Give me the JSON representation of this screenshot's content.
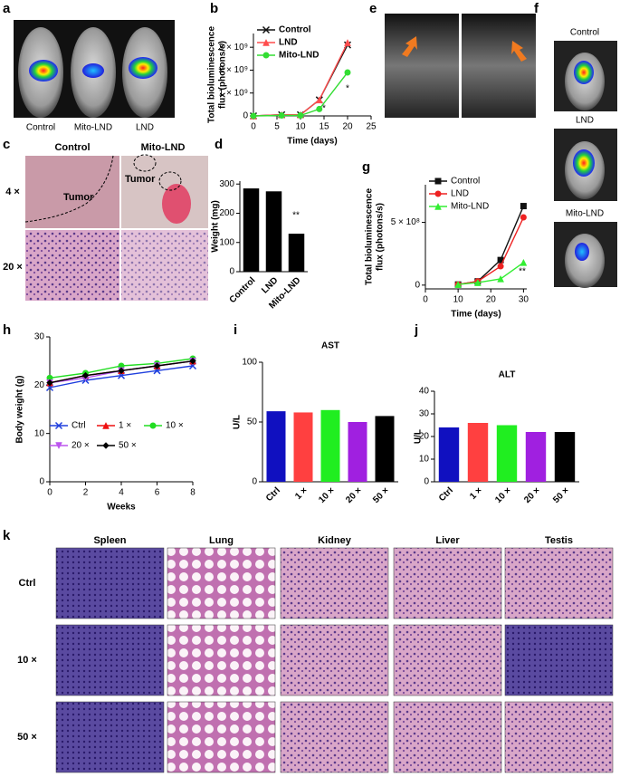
{
  "panel_labels": [
    "a",
    "b",
    "c",
    "d",
    "e",
    "f",
    "g",
    "h",
    "i",
    "j",
    "k"
  ],
  "images": {
    "a": {
      "labels": [
        "Control",
        "Mito-LND",
        "LND"
      ]
    },
    "c": {
      "columns": [
        "Control",
        "Mito-LND"
      ],
      "rows": [
        "4 ×",
        "20 ×"
      ],
      "annotations": [
        "Tumor",
        "Tumor"
      ]
    },
    "f": {
      "labels": [
        "Control",
        "LND",
        "Mito-LND"
      ]
    },
    "k": {
      "columns": [
        "Spleen",
        "Lung",
        "Kidney",
        "Liver",
        "Testis"
      ],
      "rows": [
        "Ctrl",
        "10 ×",
        "50 ×"
      ]
    }
  },
  "chart_data": [
    {
      "type": "line",
      "xlabel": "Time (days)",
      "ylabel": [
        "Total bioluminescence",
        "flux (photons/s)"
      ],
      "x": [
        0,
        6,
        10,
        14,
        20
      ],
      "xlim": [
        0,
        25
      ],
      "xticks": [
        0,
        5,
        10,
        15,
        20,
        25
      ],
      "ylim": [
        0,
        3600000000
      ],
      "yticks": [
        0,
        {
          "value": 1000000000,
          "label": "1 × 10⁹"
        },
        {
          "value": 2000000000,
          "label": "2 × 10⁹"
        },
        {
          "value": 3000000000,
          "label": "3 × 10⁹"
        }
      ],
      "legend": "upper left",
      "annotations": [
        "*",
        "*"
      ],
      "series": [
        {
          "name": "Control",
          "color": "#111111",
          "marker": "x",
          "values": [
            0,
            50000000,
            50000000,
            700000000,
            3100000000
          ]
        },
        {
          "name": "LND",
          "color": "#ff4d4d",
          "marker": "triangle",
          "values": [
            0,
            50000000,
            50000000,
            700000000,
            3200000000
          ]
        },
        {
          "name": "Mito-LND",
          "color": "#33dd33",
          "marker": "circle",
          "values": [
            0,
            20000000,
            20000000,
            300000000,
            1900000000
          ]
        }
      ]
    },
    {
      "type": "bar",
      "ylabel": [
        "Weight (mg)"
      ],
      "categories": [
        "Control",
        "LND",
        "Mito-LND"
      ],
      "values": [
        285,
        275,
        130
      ],
      "color": "#000000",
      "ylim": [
        0,
        310
      ],
      "yticks": [
        0,
        100,
        200,
        300
      ],
      "xtick_rotation": -45,
      "annotations": [
        "**"
      ]
    },
    {
      "type": "line",
      "xlabel": "Time (days)",
      "ylabel": [
        "Total bioluminescence",
        "flux (photons/s)"
      ],
      "x": [
        10,
        16,
        23,
        30
      ],
      "xlim": [
        0,
        31
      ],
      "xticks": [
        0,
        10,
        20,
        30
      ],
      "ylim": [
        -30000000,
        800000000
      ],
      "yticks": [
        0,
        {
          "value": 500000000,
          "label": "5 × 10⁸"
        }
      ],
      "legend": "upper left",
      "annotations": [
        "*",
        "**"
      ],
      "series": [
        {
          "name": "Control",
          "color": "#111111",
          "marker": "square",
          "values": [
            5000000,
            30000000,
            200000000,
            630000000
          ]
        },
        {
          "name": "LND",
          "color": "#ee2222",
          "marker": "circle",
          "values": [
            5000000,
            30000000,
            150000000,
            540000000
          ]
        },
        {
          "name": "Mito-LND",
          "color": "#33ee33",
          "marker": "triangle",
          "values": [
            5000000,
            20000000,
            50000000,
            180000000
          ]
        }
      ]
    },
    {
      "type": "line",
      "xlabel": "Weeks",
      "ylabel": [
        "Body weight (g)"
      ],
      "x": [
        0,
        2,
        4,
        6,
        8
      ],
      "xlim": [
        0,
        8
      ],
      "xticks": [
        0,
        2,
        4,
        6,
        8
      ],
      "ylim": [
        0,
        30
      ],
      "yticks": [
        0,
        10,
        20,
        30
      ],
      "legend": "lower left",
      "series": [
        {
          "name": "Ctrl",
          "color": "#1f3fdd",
          "marker": "x",
          "values": [
            19.5,
            21,
            22,
            23,
            24
          ]
        },
        {
          "name": "1 ×",
          "color": "#ee1111",
          "marker": "triangle",
          "values": [
            20.5,
            22,
            23,
            24,
            25
          ]
        },
        {
          "name": "10 ×",
          "color": "#22dd22",
          "marker": "circle",
          "values": [
            21.5,
            22.5,
            24,
            24.5,
            25.5
          ]
        },
        {
          "name": "20 ×",
          "color": "#bb55ee",
          "marker": "triangle-down",
          "values": [
            20.5,
            21.5,
            23,
            24,
            25
          ]
        },
        {
          "name": "50 ×",
          "color": "#000000",
          "marker": "diamond",
          "values": [
            20.5,
            22,
            23,
            24,
            25
          ]
        }
      ]
    },
    {
      "type": "bar",
      "title": "AST",
      "ylabel": [
        "U/L"
      ],
      "categories": [
        "Ctrl",
        "1 ×",
        "10 ×",
        "20 ×",
        "50 ×"
      ],
      "values": [
        59,
        58,
        60,
        50,
        55
      ],
      "colors": [
        "#1010c0",
        "#ff4040",
        "#20ee20",
        "#a020e0",
        "#000000"
      ],
      "ylim": [
        0,
        100
      ],
      "yticks": [
        0,
        50,
        100
      ],
      "xtick_rotation": -45
    },
    {
      "type": "bar",
      "title": "ALT",
      "ylabel": [
        "U/L"
      ],
      "categories": [
        "Ctrl",
        "1 ×",
        "10 ×",
        "20 ×",
        "50 ×"
      ],
      "values": [
        24,
        26,
        25,
        22,
        22
      ],
      "colors": [
        "#1010c0",
        "#ff4040",
        "#20ee20",
        "#a020e0",
        "#000000"
      ],
      "ylim": [
        0,
        40
      ],
      "yticks": [
        0,
        10,
        20,
        30,
        40
      ],
      "xtick_rotation": -45
    }
  ]
}
